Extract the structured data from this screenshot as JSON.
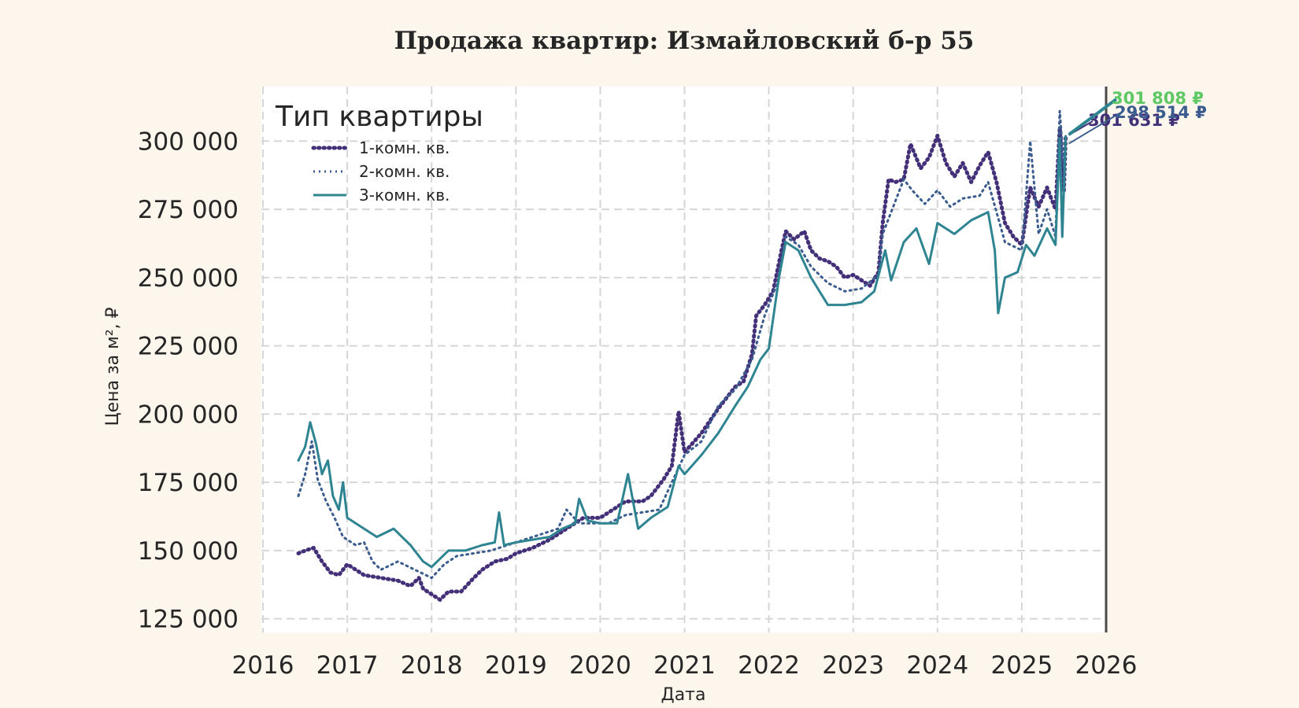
{
  "chart_data": {
    "type": "line",
    "title": "Продажа квартир: Измайловский б-р 55",
    "xlabel": "Дата",
    "ylabel": "Цена за м², ₽",
    "xlim": [
      2016,
      2026
    ],
    "ylim": [
      120000,
      320000
    ],
    "x_ticks": [
      "2016",
      "2017",
      "2018",
      "2019",
      "2020",
      "2021",
      "2022",
      "2023",
      "2024",
      "2025",
      "2026"
    ],
    "y_ticks": [
      125000,
      150000,
      175000,
      200000,
      225000,
      250000,
      275000,
      300000
    ],
    "y_tick_labels": [
      "125 000",
      "150 000",
      "175 000",
      "200 000",
      "225 000",
      "250 000",
      "275 000",
      "300 000"
    ],
    "grid": true,
    "legend": {
      "title": "Тип квартиры",
      "position": "top-left"
    },
    "series": [
      {
        "name": "1-комн. кв.",
        "color": "#433079",
        "style": "dotted-markers",
        "end_label": "301 631 ₽",
        "points": [
          [
            2016.42,
            149000
          ],
          [
            2016.5,
            150000
          ],
          [
            2016.6,
            151000
          ],
          [
            2016.7,
            146000
          ],
          [
            2016.8,
            142000
          ],
          [
            2016.9,
            141000
          ],
          [
            2017.0,
            145000
          ],
          [
            2017.2,
            141000
          ],
          [
            2017.4,
            140000
          ],
          [
            2017.6,
            139000
          ],
          [
            2017.75,
            137000
          ],
          [
            2017.85,
            140000
          ],
          [
            2017.9,
            136000
          ],
          [
            2018.0,
            134000
          ],
          [
            2018.1,
            132000
          ],
          [
            2018.2,
            135000
          ],
          [
            2018.35,
            135000
          ],
          [
            2018.5,
            140000
          ],
          [
            2018.6,
            143000
          ],
          [
            2018.75,
            146000
          ],
          [
            2018.9,
            147000
          ],
          [
            2019.0,
            149000
          ],
          [
            2019.2,
            151000
          ],
          [
            2019.4,
            154000
          ],
          [
            2019.6,
            158000
          ],
          [
            2019.8,
            162000
          ],
          [
            2020.0,
            162000
          ],
          [
            2020.15,
            165000
          ],
          [
            2020.3,
            168000
          ],
          [
            2020.5,
            168000
          ],
          [
            2020.6,
            170000
          ],
          [
            2020.75,
            176000
          ],
          [
            2020.85,
            181000
          ],
          [
            2020.93,
            201000
          ],
          [
            2021.0,
            186000
          ],
          [
            2021.2,
            193000
          ],
          [
            2021.4,
            202000
          ],
          [
            2021.6,
            210000
          ],
          [
            2021.7,
            212000
          ],
          [
            2021.8,
            222000
          ],
          [
            2021.85,
            236000
          ],
          [
            2021.95,
            240000
          ],
          [
            2022.05,
            245000
          ],
          [
            2022.15,
            260000
          ],
          [
            2022.2,
            267000
          ],
          [
            2022.3,
            264000
          ],
          [
            2022.42,
            267000
          ],
          [
            2022.5,
            260000
          ],
          [
            2022.6,
            257000
          ],
          [
            2022.7,
            256000
          ],
          [
            2022.8,
            254000
          ],
          [
            2022.9,
            250000
          ],
          [
            2023.0,
            251000
          ],
          [
            2023.1,
            249000
          ],
          [
            2023.2,
            247000
          ],
          [
            2023.3,
            252000
          ],
          [
            2023.35,
            270000
          ],
          [
            2023.42,
            286000
          ],
          [
            2023.5,
            285000
          ],
          [
            2023.6,
            286000
          ],
          [
            2023.68,
            299000
          ],
          [
            2023.8,
            290000
          ],
          [
            2023.9,
            294000
          ],
          [
            2024.0,
            302000
          ],
          [
            2024.1,
            292000
          ],
          [
            2024.2,
            287000
          ],
          [
            2024.3,
            292000
          ],
          [
            2024.4,
            285000
          ],
          [
            2024.5,
            291000
          ],
          [
            2024.6,
            296000
          ],
          [
            2024.7,
            285000
          ],
          [
            2024.8,
            270000
          ],
          [
            2024.9,
            265000
          ],
          [
            2025.0,
            262000
          ],
          [
            2025.1,
            283000
          ],
          [
            2025.2,
            276000
          ],
          [
            2025.3,
            283000
          ],
          [
            2025.4,
            275000
          ],
          [
            2025.45,
            305000
          ],
          [
            2025.5,
            282000
          ],
          [
            2025.52,
            301631
          ]
        ]
      },
      {
        "name": "2-комн. кв.",
        "color": "#3b5c8e",
        "style": "dotted",
        "end_label": "298 514 ₽",
        "points": [
          [
            2016.42,
            170000
          ],
          [
            2016.5,
            178000
          ],
          [
            2016.58,
            190000
          ],
          [
            2016.65,
            176000
          ],
          [
            2016.75,
            168000
          ],
          [
            2016.85,
            162000
          ],
          [
            2016.95,
            155000
          ],
          [
            2017.1,
            152000
          ],
          [
            2017.2,
            153000
          ],
          [
            2017.3,
            146000
          ],
          [
            2017.4,
            143000
          ],
          [
            2017.6,
            146000
          ],
          [
            2017.8,
            143000
          ],
          [
            2018.0,
            140000
          ],
          [
            2018.15,
            145000
          ],
          [
            2018.3,
            148000
          ],
          [
            2018.5,
            149000
          ],
          [
            2018.7,
            150000
          ],
          [
            2018.9,
            152000
          ],
          [
            2019.1,
            154000
          ],
          [
            2019.3,
            156000
          ],
          [
            2019.5,
            158000
          ],
          [
            2019.6,
            165000
          ],
          [
            2019.75,
            160000
          ],
          [
            2019.9,
            160000
          ],
          [
            2020.1,
            160000
          ],
          [
            2020.3,
            163000
          ],
          [
            2020.5,
            164000
          ],
          [
            2020.7,
            165000
          ],
          [
            2020.85,
            175000
          ],
          [
            2021.0,
            185000
          ],
          [
            2021.2,
            190000
          ],
          [
            2021.4,
            203000
          ],
          [
            2021.6,
            209000
          ],
          [
            2021.8,
            220000
          ],
          [
            2021.95,
            236000
          ],
          [
            2022.1,
            248000
          ],
          [
            2022.2,
            265000
          ],
          [
            2022.35,
            262000
          ],
          [
            2022.5,
            254000
          ],
          [
            2022.7,
            248000
          ],
          [
            2022.9,
            245000
          ],
          [
            2023.1,
            246000
          ],
          [
            2023.3,
            251000
          ],
          [
            2023.35,
            266000
          ],
          [
            2023.5,
            278000
          ],
          [
            2023.6,
            286000
          ],
          [
            2023.7,
            282000
          ],
          [
            2023.85,
            277000
          ],
          [
            2024.0,
            282000
          ],
          [
            2024.15,
            276000
          ],
          [
            2024.3,
            279000
          ],
          [
            2024.5,
            280000
          ],
          [
            2024.6,
            285000
          ],
          [
            2024.8,
            263000
          ],
          [
            2025.0,
            260000
          ],
          [
            2025.05,
            280000
          ],
          [
            2025.1,
            300000
          ],
          [
            2025.2,
            266000
          ],
          [
            2025.3,
            275000
          ],
          [
            2025.4,
            265000
          ],
          [
            2025.45,
            311000
          ],
          [
            2025.5,
            290000
          ],
          [
            2025.52,
            298514
          ]
        ]
      },
      {
        "name": "3-комн. кв.",
        "color": "#2e8591",
        "style": "solid",
        "end_label": "301 808 ₽",
        "points": [
          [
            2016.42,
            183000
          ],
          [
            2016.5,
            188000
          ],
          [
            2016.56,
            197000
          ],
          [
            2016.63,
            189000
          ],
          [
            2016.7,
            178000
          ],
          [
            2016.77,
            183000
          ],
          [
            2016.83,
            170000
          ],
          [
            2016.9,
            165000
          ],
          [
            2016.95,
            175000
          ],
          [
            2017.0,
            162000
          ],
          [
            2017.2,
            158000
          ],
          [
            2017.35,
            155000
          ],
          [
            2017.55,
            158000
          ],
          [
            2017.75,
            152000
          ],
          [
            2017.9,
            146000
          ],
          [
            2018.0,
            144000
          ],
          [
            2018.1,
            147000
          ],
          [
            2018.2,
            150000
          ],
          [
            2018.4,
            150000
          ],
          [
            2018.6,
            152000
          ],
          [
            2018.75,
            153000
          ],
          [
            2018.8,
            164000
          ],
          [
            2018.86,
            152000
          ],
          [
            2019.0,
            153000
          ],
          [
            2019.2,
            154000
          ],
          [
            2019.4,
            155000
          ],
          [
            2019.55,
            158000
          ],
          [
            2019.7,
            160000
          ],
          [
            2019.75,
            169000
          ],
          [
            2019.85,
            161000
          ],
          [
            2020.0,
            160000
          ],
          [
            2020.2,
            160000
          ],
          [
            2020.33,
            178000
          ],
          [
            2020.45,
            158000
          ],
          [
            2020.6,
            162000
          ],
          [
            2020.8,
            166000
          ],
          [
            2020.93,
            181000
          ],
          [
            2021.0,
            178000
          ],
          [
            2021.2,
            185000
          ],
          [
            2021.4,
            193000
          ],
          [
            2021.6,
            203000
          ],
          [
            2021.75,
            210000
          ],
          [
            2021.9,
            220000
          ],
          [
            2022.0,
            224000
          ],
          [
            2022.12,
            250000
          ],
          [
            2022.2,
            263000
          ],
          [
            2022.35,
            260000
          ],
          [
            2022.5,
            250000
          ],
          [
            2022.7,
            240000
          ],
          [
            2022.9,
            240000
          ],
          [
            2023.1,
            241000
          ],
          [
            2023.25,
            245000
          ],
          [
            2023.38,
            260000
          ],
          [
            2023.45,
            249000
          ],
          [
            2023.6,
            263000
          ],
          [
            2023.75,
            268000
          ],
          [
            2023.9,
            255000
          ],
          [
            2024.0,
            270000
          ],
          [
            2024.2,
            266000
          ],
          [
            2024.4,
            271000
          ],
          [
            2024.6,
            274000
          ],
          [
            2024.68,
            260000
          ],
          [
            2024.72,
            237000
          ],
          [
            2024.8,
            250000
          ],
          [
            2024.95,
            252000
          ],
          [
            2025.05,
            262000
          ],
          [
            2025.15,
            258000
          ],
          [
            2025.3,
            268000
          ],
          [
            2025.4,
            262000
          ],
          [
            2025.45,
            301000
          ],
          [
            2025.48,
            265000
          ],
          [
            2025.52,
            301808
          ]
        ]
      }
    ]
  }
}
